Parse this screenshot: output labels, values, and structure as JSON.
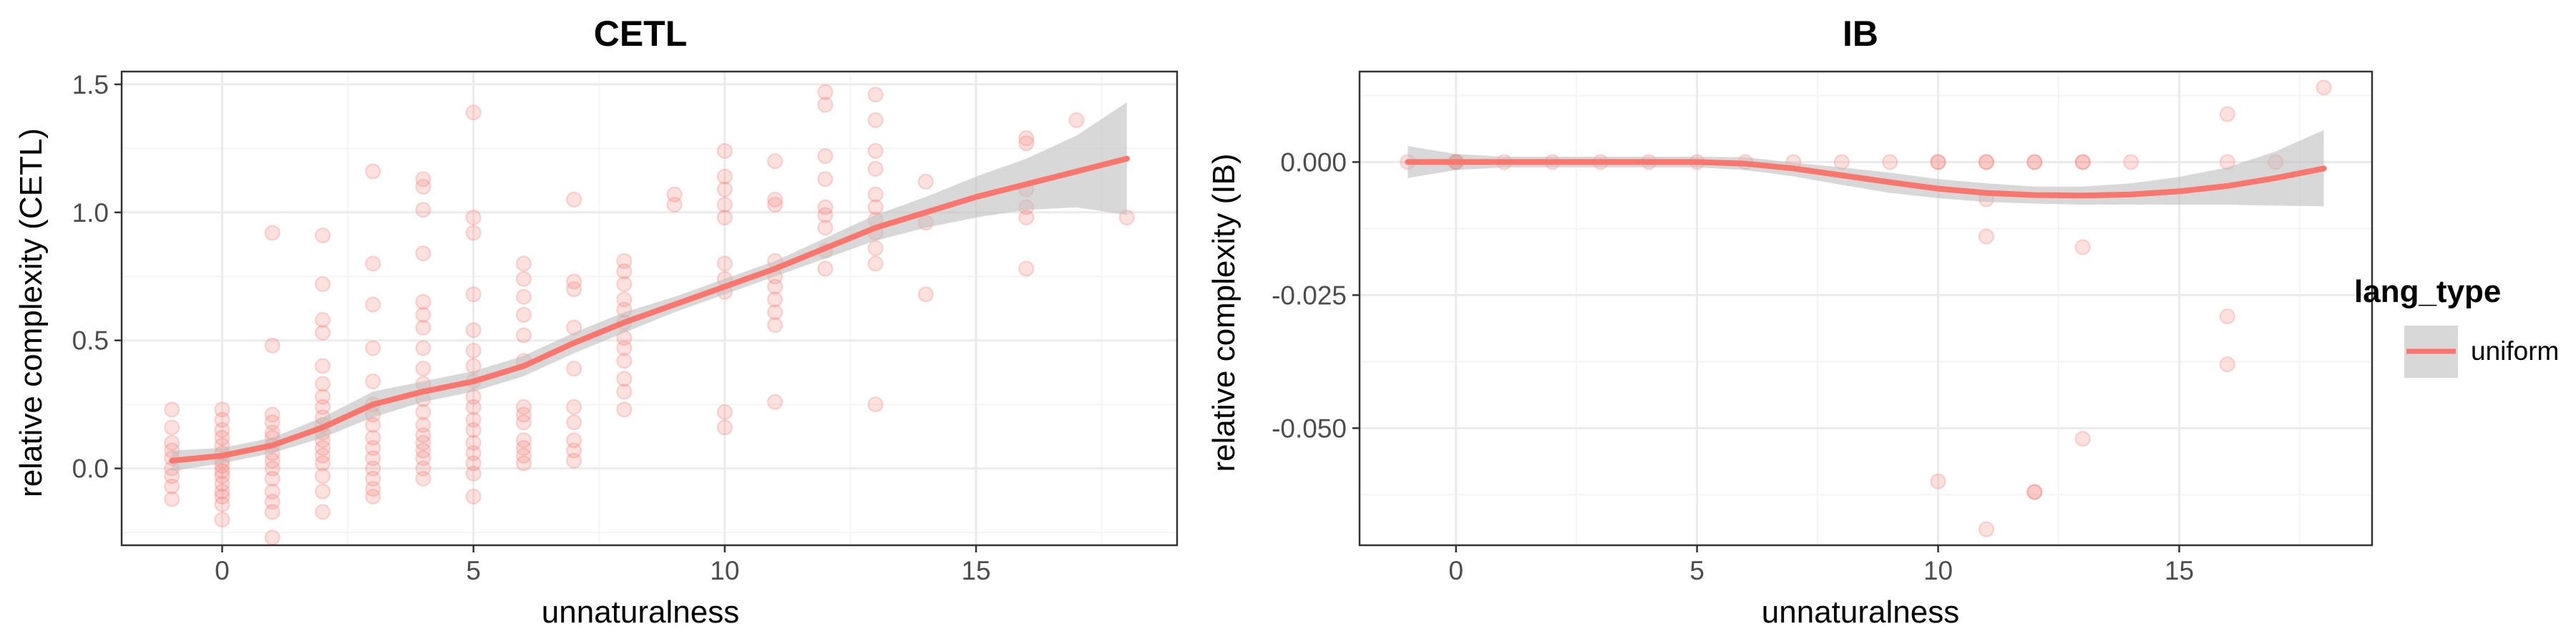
{
  "colors": {
    "series": "#F8766D",
    "ribbon": "#BEBEBE",
    "grid_major": "#EBEBEB",
    "grid_minor": "#F5F5F5",
    "border": "#333333"
  },
  "legend": {
    "title": "lang_type",
    "items": [
      {
        "label": "uniform",
        "color": "#F8766D"
      }
    ]
  },
  "chart_data": [
    {
      "type": "scatter",
      "smoothing": "loess",
      "title": "CETL",
      "xlabel": "unnaturalness",
      "ylabel": "relative complexity (CETL)",
      "xlim": [
        -2.0,
        19.0
      ],
      "ylim": [
        -0.3,
        1.55
      ],
      "x_ticks": [
        0,
        5,
        10,
        15
      ],
      "y_ticks": [
        0.0,
        0.5,
        1.0,
        1.5
      ],
      "x_tick_labels": [
        "0",
        "5",
        "10",
        "15"
      ],
      "y_tick_labels": [
        "0.0",
        "0.5",
        "1.0",
        "1.5"
      ],
      "grid": true,
      "series": [
        {
          "name": "uniform",
          "points": [
            [
              -1,
              0.23
            ],
            [
              -1,
              0.16
            ],
            [
              -1,
              0.1
            ],
            [
              -1,
              0.07
            ],
            [
              -1,
              0.04
            ],
            [
              -1,
              0.0
            ],
            [
              -1,
              -0.03
            ],
            [
              -1,
              -0.07
            ],
            [
              -1,
              -0.12
            ],
            [
              0,
              0.23
            ],
            [
              0,
              0.19
            ],
            [
              0,
              0.15
            ],
            [
              0,
              0.12
            ],
            [
              0,
              0.09
            ],
            [
              0,
              0.06
            ],
            [
              0,
              0.03
            ],
            [
              0,
              0.01
            ],
            [
              0,
              -0.01
            ],
            [
              0,
              -0.03
            ],
            [
              0,
              -0.06
            ],
            [
              0,
              -0.09
            ],
            [
              0,
              -0.11
            ],
            [
              0,
              -0.14
            ],
            [
              0,
              -0.2
            ],
            [
              1,
              0.92
            ],
            [
              1,
              0.48
            ],
            [
              1,
              0.21
            ],
            [
              1,
              0.18
            ],
            [
              1,
              0.14
            ],
            [
              1,
              0.12
            ],
            [
              1,
              0.09
            ],
            [
              1,
              0.06
            ],
            [
              1,
              0.03
            ],
            [
              1,
              0.0
            ],
            [
              1,
              -0.04
            ],
            [
              1,
              -0.09
            ],
            [
              1,
              -0.13
            ],
            [
              1,
              -0.17
            ],
            [
              1,
              -0.27
            ],
            [
              2,
              0.91
            ],
            [
              2,
              0.72
            ],
            [
              2,
              0.58
            ],
            [
              2,
              0.53
            ],
            [
              2,
              0.4
            ],
            [
              2,
              0.33
            ],
            [
              2,
              0.28
            ],
            [
              2,
              0.24
            ],
            [
              2,
              0.2
            ],
            [
              2,
              0.17
            ],
            [
              2,
              0.14
            ],
            [
              2,
              0.11
            ],
            [
              2,
              0.08
            ],
            [
              2,
              0.05
            ],
            [
              2,
              0.02
            ],
            [
              2,
              -0.03
            ],
            [
              2,
              -0.09
            ],
            [
              2,
              -0.17
            ],
            [
              3,
              1.16
            ],
            [
              3,
              0.8
            ],
            [
              3,
              0.64
            ],
            [
              3,
              0.47
            ],
            [
              3,
              0.34
            ],
            [
              3,
              0.25
            ],
            [
              3,
              0.21
            ],
            [
              3,
              0.17
            ],
            [
              3,
              0.12
            ],
            [
              3,
              0.08
            ],
            [
              3,
              0.04
            ],
            [
              3,
              0.0
            ],
            [
              3,
              -0.04
            ],
            [
              3,
              -0.08
            ],
            [
              3,
              -0.11
            ],
            [
              4,
              1.13
            ],
            [
              4,
              1.1
            ],
            [
              4,
              1.01
            ],
            [
              4,
              0.84
            ],
            [
              4,
              0.65
            ],
            [
              4,
              0.6
            ],
            [
              4,
              0.55
            ],
            [
              4,
              0.47
            ],
            [
              4,
              0.39
            ],
            [
              4,
              0.33
            ],
            [
              4,
              0.27
            ],
            [
              4,
              0.22
            ],
            [
              4,
              0.17
            ],
            [
              4,
              0.13
            ],
            [
              4,
              0.1
            ],
            [
              4,
              0.07
            ],
            [
              4,
              0.04
            ],
            [
              4,
              0.0
            ],
            [
              4,
              -0.04
            ],
            [
              5,
              1.39
            ],
            [
              5,
              0.98
            ],
            [
              5,
              0.92
            ],
            [
              5,
              0.68
            ],
            [
              5,
              0.54
            ],
            [
              5,
              0.46
            ],
            [
              5,
              0.4
            ],
            [
              5,
              0.34
            ],
            [
              5,
              0.28
            ],
            [
              5,
              0.24
            ],
            [
              5,
              0.19
            ],
            [
              5,
              0.15
            ],
            [
              5,
              0.1
            ],
            [
              5,
              0.06
            ],
            [
              5,
              0.02
            ],
            [
              5,
              -0.02
            ],
            [
              5,
              -0.11
            ],
            [
              6,
              0.8
            ],
            [
              6,
              0.74
            ],
            [
              6,
              0.67
            ],
            [
              6,
              0.6
            ],
            [
              6,
              0.52
            ],
            [
              6,
              0.42
            ],
            [
              6,
              0.24
            ],
            [
              6,
              0.21
            ],
            [
              6,
              0.18
            ],
            [
              6,
              0.11
            ],
            [
              6,
              0.08
            ],
            [
              6,
              0.05
            ],
            [
              6,
              0.02
            ],
            [
              7,
              1.05
            ],
            [
              7,
              0.73
            ],
            [
              7,
              0.7
            ],
            [
              7,
              0.55
            ],
            [
              7,
              0.39
            ],
            [
              7,
              0.24
            ],
            [
              7,
              0.18
            ],
            [
              7,
              0.11
            ],
            [
              7,
              0.07
            ],
            [
              7,
              0.03
            ],
            [
              8,
              0.81
            ],
            [
              8,
              0.77
            ],
            [
              8,
              0.72
            ],
            [
              8,
              0.66
            ],
            [
              8,
              0.62
            ],
            [
              8,
              0.57
            ],
            [
              8,
              0.51
            ],
            [
              8,
              0.47
            ],
            [
              8,
              0.42
            ],
            [
              8,
              0.35
            ],
            [
              8,
              0.3
            ],
            [
              8,
              0.23
            ],
            [
              9,
              1.07
            ],
            [
              9,
              1.03
            ],
            [
              10,
              1.24
            ],
            [
              10,
              1.14
            ],
            [
              10,
              1.09
            ],
            [
              10,
              1.03
            ],
            [
              10,
              0.98
            ],
            [
              10,
              0.8
            ],
            [
              10,
              0.74
            ],
            [
              10,
              0.69
            ],
            [
              10,
              0.22
            ],
            [
              10,
              0.16
            ],
            [
              11,
              1.2
            ],
            [
              11,
              1.05
            ],
            [
              11,
              1.03
            ],
            [
              11,
              0.81
            ],
            [
              11,
              0.75
            ],
            [
              11,
              0.71
            ],
            [
              11,
              0.66
            ],
            [
              11,
              0.61
            ],
            [
              11,
              0.56
            ],
            [
              11,
              0.26
            ],
            [
              12,
              1.47
            ],
            [
              12,
              1.42
            ],
            [
              12,
              1.22
            ],
            [
              12,
              1.13
            ],
            [
              12,
              1.02
            ],
            [
              12,
              0.99
            ],
            [
              12,
              0.94
            ],
            [
              12,
              0.85
            ],
            [
              12,
              0.78
            ],
            [
              13,
              1.46
            ],
            [
              13,
              1.36
            ],
            [
              13,
              1.24
            ],
            [
              13,
              1.17
            ],
            [
              13,
              1.07
            ],
            [
              13,
              1.02
            ],
            [
              13,
              0.97
            ],
            [
              13,
              0.92
            ],
            [
              13,
              0.86
            ],
            [
              13,
              0.8
            ],
            [
              13,
              0.25
            ],
            [
              14,
              1.12
            ],
            [
              14,
              0.96
            ],
            [
              14,
              0.68
            ],
            [
              16,
              1.29
            ],
            [
              16,
              1.27
            ],
            [
              16,
              1.09
            ],
            [
              16,
              1.02
            ],
            [
              16,
              0.98
            ],
            [
              16,
              0.78
            ],
            [
              17,
              1.36
            ],
            [
              18,
              0.98
            ]
          ]
        }
      ],
      "fit": {
        "x": [
          -1,
          0,
          1,
          2,
          3,
          4,
          5,
          6,
          7,
          8,
          9,
          10,
          11,
          12,
          13,
          14,
          15,
          16,
          17,
          18
        ],
        "y": [
          0.03,
          0.05,
          0.09,
          0.16,
          0.25,
          0.3,
          0.34,
          0.4,
          0.49,
          0.57,
          0.64,
          0.71,
          0.78,
          0.86,
          0.94,
          1.0,
          1.06,
          1.11,
          1.16,
          1.21
        ],
        "lower": [
          -0.01,
          0.02,
          0.06,
          0.12,
          0.2,
          0.26,
          0.3,
          0.36,
          0.45,
          0.53,
          0.61,
          0.68,
          0.75,
          0.82,
          0.89,
          0.94,
          0.98,
          1.01,
          1.02,
          0.99
        ],
        "upper": [
          0.07,
          0.08,
          0.12,
          0.2,
          0.3,
          0.34,
          0.38,
          0.44,
          0.53,
          0.61,
          0.67,
          0.74,
          0.81,
          0.9,
          0.99,
          1.06,
          1.14,
          1.21,
          1.3,
          1.43
        ]
      }
    },
    {
      "type": "scatter",
      "smoothing": "loess",
      "title": "IB",
      "xlabel": "unnaturalness",
      "ylabel": "relative complexity (IB)",
      "xlim": [
        -2.0,
        19.0
      ],
      "ylim": [
        -0.072,
        0.017
      ],
      "x_ticks": [
        0,
        5,
        10,
        15
      ],
      "y_ticks": [
        0.0,
        -0.025,
        -0.05
      ],
      "x_tick_labels": [
        "0",
        "5",
        "10",
        "15"
      ],
      "y_tick_labels": [
        "0.000",
        "-0.025",
        "-0.050"
      ],
      "grid": true,
      "series": [
        {
          "name": "uniform",
          "points": [
            [
              -1,
              0.0
            ],
            [
              0,
              0.0
            ],
            [
              0,
              0.0
            ],
            [
              0,
              0.0
            ],
            [
              0,
              0.0
            ],
            [
              0,
              0.0
            ],
            [
              1,
              0.0
            ],
            [
              2,
              0.0
            ],
            [
              3,
              0.0
            ],
            [
              4,
              0.0
            ],
            [
              5,
              0.0
            ],
            [
              6,
              0.0
            ],
            [
              7,
              0.0
            ],
            [
              8,
              0.0
            ],
            [
              9,
              0.0
            ],
            [
              10,
              0.0
            ],
            [
              10,
              0.0
            ],
            [
              10,
              -0.06
            ],
            [
              11,
              0.0
            ],
            [
              11,
              0.0
            ],
            [
              11,
              -0.007
            ],
            [
              11,
              -0.014
            ],
            [
              11,
              -0.069
            ],
            [
              12,
              0.0
            ],
            [
              12,
              0.0
            ],
            [
              12,
              -0.062
            ],
            [
              12,
              -0.062
            ],
            [
              13,
              0.0
            ],
            [
              13,
              0.0
            ],
            [
              13,
              -0.016
            ],
            [
              13,
              -0.052
            ],
            [
              14,
              0.0
            ],
            [
              16,
              0.009
            ],
            [
              16,
              0.0
            ],
            [
              16,
              -0.029
            ],
            [
              16,
              -0.038
            ],
            [
              17,
              0.0
            ],
            [
              18,
              0.014
            ]
          ]
        }
      ],
      "fit": {
        "x": [
          -1,
          0,
          1,
          2,
          3,
          4,
          5,
          6,
          7,
          8,
          9,
          10,
          11,
          12,
          13,
          14,
          15,
          16,
          17,
          18
        ],
        "y": [
          0.0,
          0.0,
          0.0,
          0.0,
          0.0,
          0.0,
          0.0,
          -0.0003,
          -0.0012,
          -0.0025,
          -0.0038,
          -0.005,
          -0.0058,
          -0.0062,
          -0.0063,
          -0.0061,
          -0.0055,
          -0.0045,
          -0.003,
          -0.0012
        ],
        "lower": [
          -0.003,
          -0.0015,
          -0.001,
          -0.001,
          -0.001,
          -0.001,
          -0.001,
          -0.0015,
          -0.0027,
          -0.0043,
          -0.0058,
          -0.0068,
          -0.0075,
          -0.0078,
          -0.008,
          -0.008,
          -0.008,
          -0.008,
          -0.0082,
          -0.0083
        ],
        "upper": [
          0.003,
          0.0015,
          0.001,
          0.001,
          0.001,
          0.001,
          0.001,
          0.0009,
          -0.0001,
          -0.001,
          -0.002,
          -0.0032,
          -0.004,
          -0.0046,
          -0.0046,
          -0.004,
          -0.0028,
          -0.001,
          0.002,
          0.006
        ]
      }
    }
  ]
}
